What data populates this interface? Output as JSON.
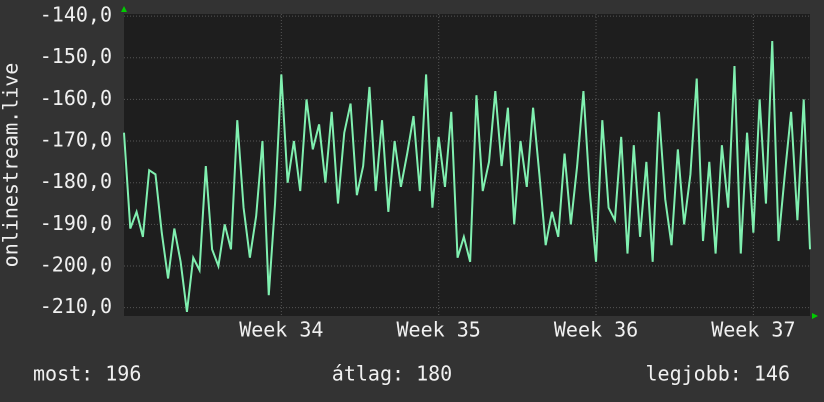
{
  "chart_data": {
    "type": "line",
    "y_label": "onlinestream.live",
    "xlim": [
      33,
      37.36
    ],
    "xticks": [
      {
        "value": 34,
        "label": "Week 34"
      },
      {
        "value": 35,
        "label": "Week 35"
      },
      {
        "value": 36,
        "label": "Week 36"
      },
      {
        "value": 37,
        "label": "Week 37"
      }
    ],
    "ylim": [
      -212,
      -139.5
    ],
    "yticks": [
      {
        "value": -140,
        "label": "-140,0"
      },
      {
        "value": -150,
        "label": "-150,0"
      },
      {
        "value": -160,
        "label": "-160,0"
      },
      {
        "value": -170,
        "label": "-170,0"
      },
      {
        "value": -180,
        "label": "-180,0"
      },
      {
        "value": -190,
        "label": "-190,0"
      },
      {
        "value": -200,
        "label": "-200,0"
      },
      {
        "value": -210,
        "label": "-210,0"
      }
    ],
    "grid": true,
    "x": [
      33.0,
      33.04,
      33.08,
      33.12,
      33.16,
      33.2,
      33.24,
      33.28,
      33.32,
      33.36,
      33.4,
      33.44,
      33.48,
      33.52,
      33.56,
      33.6,
      33.64,
      33.68,
      33.72,
      33.76,
      33.8,
      33.84,
      33.88,
      33.92,
      33.96,
      34.0,
      34.04,
      34.08,
      34.12,
      34.16,
      34.2,
      34.24,
      34.28,
      34.32,
      34.36,
      34.4,
      34.44,
      34.48,
      34.52,
      34.56,
      34.6,
      34.64,
      34.68,
      34.72,
      34.76,
      34.8,
      34.84,
      34.88,
      34.92,
      34.96,
      35.0,
      35.04,
      35.08,
      35.12,
      35.16,
      35.2,
      35.24,
      35.28,
      35.32,
      35.36,
      35.4,
      35.44,
      35.48,
      35.52,
      35.56,
      35.6,
      35.64,
      35.68,
      35.72,
      35.76,
      35.8,
      35.84,
      35.88,
      35.92,
      35.96,
      36.0,
      36.04,
      36.08,
      36.12,
      36.16,
      36.2,
      36.24,
      36.28,
      36.32,
      36.36,
      36.4,
      36.44,
      36.48,
      36.52,
      36.56,
      36.6,
      36.64,
      36.68,
      36.72,
      36.76,
      36.8,
      36.84,
      36.88,
      36.92,
      36.96,
      37.0,
      37.04,
      37.08,
      37.12,
      37.16,
      37.2,
      37.24,
      37.28,
      37.32,
      37.36
    ],
    "series": [
      {
        "name": "onlinestream.live",
        "color": "#80f0b0",
        "values": [
          -168,
          -191,
          -187,
          -193,
          -177,
          -178,
          -192,
          -203,
          -191,
          -199,
          -211,
          -198,
          -201,
          -176,
          -196,
          -200,
          -190,
          -196,
          -165,
          -186,
          -198,
          -188,
          -170,
          -207,
          -185,
          -154,
          -180,
          -170,
          -182,
          -160,
          -172,
          -166,
          -180,
          -163,
          -185,
          -168,
          -161,
          -183,
          -176,
          -157,
          -182,
          -165,
          -187,
          -170,
          -181,
          -173,
          -164,
          -182,
          -154,
          -186,
          -169,
          -181,
          -163,
          -198,
          -193,
          -199,
          -159,
          -182,
          -175,
          -158,
          -176,
          -162,
          -190,
          -170,
          -181,
          -162,
          -178,
          -195,
          -187,
          -193,
          -173,
          -190,
          -176,
          -158,
          -182,
          -199,
          -165,
          -186,
          -189,
          -169,
          -197,
          -171,
          -193,
          -175,
          -199,
          -163,
          -184,
          -195,
          -172,
          -190,
          -178,
          -155,
          -194,
          -175,
          -197,
          -171,
          -186,
          -152,
          -197,
          -168,
          -192,
          -160,
          -185,
          -146,
          -194,
          -178,
          -163,
          -189,
          -160,
          -196
        ]
      }
    ],
    "footer": {
      "current": "most: 196",
      "average": "átlag: 180",
      "best": "legjobb: 146"
    }
  }
}
